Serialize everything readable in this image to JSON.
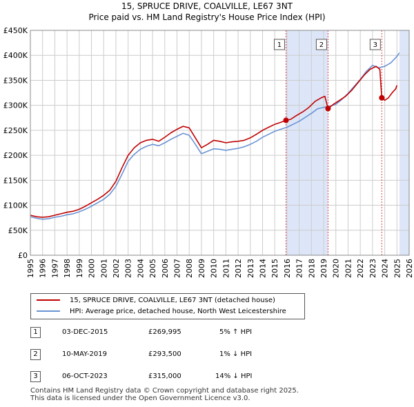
{
  "header": {
    "title": "15, SPRUCE DRIVE, COALVILLE, LE67 3NT",
    "subtitle": "Price paid vs. HM Land Registry's House Price Index (HPI)"
  },
  "colors": {
    "property": "#c00000",
    "hpi": "#6a93d4",
    "shade": "#dde6f8",
    "grid": "#cccccc",
    "vline": "#e04040"
  },
  "chart_data": {
    "type": "line",
    "title": "15, SPRUCE DRIVE, COALVILLE, LE67 3NT",
    "subtitle": "Price paid vs. HM Land Registry's House Price Index (HPI)",
    "xlabel": "",
    "ylabel": "",
    "xlim": [
      1995,
      2026
    ],
    "ylim": [
      0,
      450000
    ],
    "yticks": [
      0,
      50000,
      100000,
      150000,
      200000,
      250000,
      300000,
      350000,
      400000,
      450000
    ],
    "ytick_labels": [
      "£0",
      "£50K",
      "£100K",
      "£150K",
      "£200K",
      "£250K",
      "£300K",
      "£350K",
      "£400K",
      "£450K"
    ],
    "xticks": [
      1995,
      1996,
      1997,
      1998,
      1999,
      2000,
      2001,
      2002,
      2003,
      2004,
      2005,
      2006,
      2007,
      2008,
      2009,
      2010,
      2011,
      2012,
      2013,
      2014,
      2015,
      2016,
      2017,
      2018,
      2019,
      2020,
      2021,
      2022,
      2023,
      2024,
      2025,
      2026
    ],
    "grid": true,
    "shaded_spans": [
      [
        2015.92,
        2019.36
      ],
      [
        2025.2,
        2026
      ]
    ],
    "series": [
      {
        "name": "15, SPRUCE DRIVE, COALVILLE, LE67 3NT (detached house)",
        "color": "#c00000",
        "x": [
          1995,
          1995.5,
          1996,
          1996.5,
          1997,
          1997.5,
          1998,
          1998.5,
          1999,
          1999.5,
          2000,
          2000.5,
          2001,
          2001.5,
          2002,
          2002.5,
          2003,
          2003.5,
          2004,
          2004.5,
          2005,
          2005.5,
          2006,
          2006.5,
          2007,
          2007.5,
          2008,
          2008.5,
          2009,
          2009.5,
          2010,
          2010.5,
          2011,
          2011.5,
          2012,
          2012.5,
          2013,
          2013.5,
          2014,
          2014.5,
          2015,
          2015.5,
          2015.92,
          2016.3,
          2016.8,
          2017.3,
          2017.8,
          2018.3,
          2018.8,
          2019.1,
          2019.36,
          2019.8,
          2020.3,
          2020.8,
          2021.3,
          2021.8,
          2022.3,
          2022.8,
          2023.3,
          2023.6,
          2023.76,
          2024.0,
          2024.3,
          2024.6,
          2024.9,
          2025.0
        ],
        "y": [
          80000,
          77000,
          76000,
          77000,
          80000,
          83000,
          86000,
          88000,
          92000,
          98000,
          105000,
          112000,
          120000,
          130000,
          148000,
          175000,
          200000,
          215000,
          225000,
          230000,
          232000,
          228000,
          236000,
          245000,
          252000,
          258000,
          255000,
          235000,
          215000,
          222000,
          230000,
          228000,
          225000,
          227000,
          228000,
          230000,
          235000,
          242000,
          250000,
          256000,
          262000,
          266000,
          269995,
          272000,
          280000,
          287000,
          296000,
          308000,
          315000,
          318000,
          293500,
          302000,
          310000,
          318000,
          330000,
          345000,
          360000,
          372000,
          378000,
          372000,
          315000,
          310000,
          315000,
          325000,
          333000,
          340000
        ]
      },
      {
        "name": "HPI: Average price, detached house, North West Leicestershire",
        "color": "#6a93d4",
        "x": [
          1995,
          1995.5,
          1996,
          1996.5,
          1997,
          1997.5,
          1998,
          1998.5,
          1999,
          1999.5,
          2000,
          2000.5,
          2001,
          2001.5,
          2002,
          2002.5,
          2003,
          2003.5,
          2004,
          2004.5,
          2005,
          2005.5,
          2006,
          2006.5,
          2007,
          2007.5,
          2008,
          2008.5,
          2009,
          2009.5,
          2010,
          2010.5,
          2011,
          2011.5,
          2012,
          2012.5,
          2013,
          2013.5,
          2014,
          2014.5,
          2015,
          2015.5,
          2016,
          2016.5,
          2017,
          2017.5,
          2018,
          2018.5,
          2019,
          2019.5,
          2020,
          2020.5,
          2021,
          2021.5,
          2022,
          2022.5,
          2023,
          2023.5,
          2024,
          2024.5,
          2025,
          2025.2
        ],
        "y": [
          77000,
          74000,
          72000,
          73000,
          76000,
          78000,
          81000,
          83000,
          87000,
          92000,
          98000,
          105000,
          112000,
          122000,
          138000,
          162000,
          188000,
          202000,
          212000,
          218000,
          222000,
          219000,
          225000,
          232000,
          238000,
          244000,
          240000,
          222000,
          203000,
          208000,
          213000,
          212000,
          210000,
          212000,
          214000,
          217000,
          222000,
          228000,
          236000,
          242000,
          248000,
          252000,
          256000,
          262000,
          268000,
          276000,
          284000,
          293000,
          296000,
          298000,
          302000,
          312000,
          324000,
          338000,
          352000,
          368000,
          380000,
          375000,
          378000,
          385000,
          398000,
          405000
        ]
      }
    ],
    "annotations": [
      {
        "label": "1",
        "x": 2015.92,
        "y": 269995
      },
      {
        "label": "2",
        "x": 2019.36,
        "y": 293500
      },
      {
        "label": "3",
        "x": 2023.76,
        "y": 315000
      }
    ]
  },
  "legend": {
    "items": [
      {
        "label": "15, SPRUCE DRIVE, COALVILLE, LE67 3NT (detached house)"
      },
      {
        "label": "HPI: Average price, detached house, North West Leicestershire"
      }
    ]
  },
  "transactions": [
    {
      "num": "1",
      "date": "03-DEC-2015",
      "price": "£269,995",
      "hpi": "5% ↑ HPI"
    },
    {
      "num": "2",
      "date": "10-MAY-2019",
      "price": "£293,500",
      "hpi": "1% ↓ HPI"
    },
    {
      "num": "3",
      "date": "06-OCT-2023",
      "price": "£315,000",
      "hpi": "14% ↓ HPI"
    }
  ],
  "footer": {
    "line1": "Contains HM Land Registry data © Crown copyright and database right 2025.",
    "line2": "This data is licensed under the Open Government Licence v3.0."
  }
}
